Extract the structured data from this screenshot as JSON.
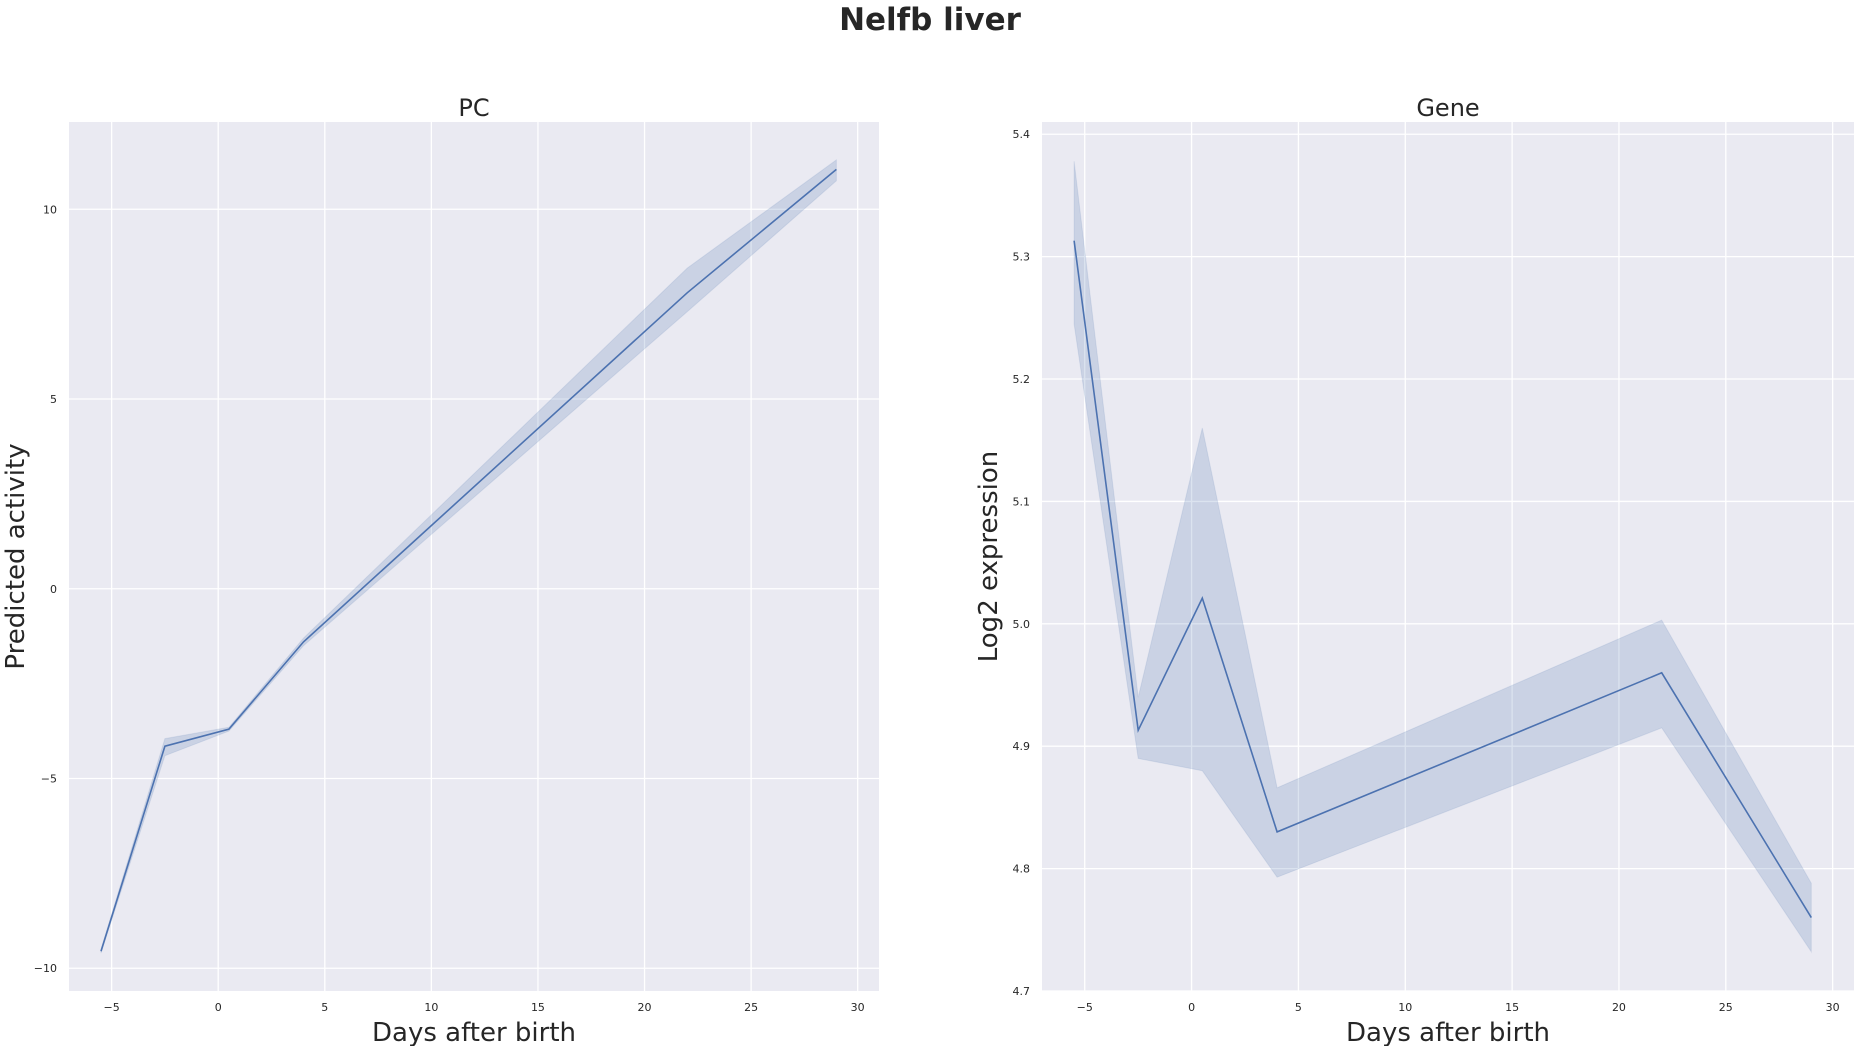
{
  "figure": {
    "title": "Nelfb liver"
  },
  "chart_data": [
    {
      "type": "line",
      "title": "PC",
      "xlabel": "Days after birth",
      "ylabel": "Predicted activity",
      "xlim": [
        -7,
        31
      ],
      "ylim": [
        -10.6,
        12.3
      ],
      "xticks": [
        -5,
        0,
        5,
        10,
        15,
        20,
        25,
        30
      ],
      "yticks": [
        -10,
        -5,
        0,
        5,
        10
      ],
      "grid": true,
      "series": [
        {
          "color": "#4c72b0",
          "x": [
            -5.5,
            -2.5,
            0.5,
            4,
            22,
            29
          ],
          "y": [
            -9.55,
            -4.15,
            -3.7,
            -1.4,
            7.8,
            11.05
          ],
          "ci_low": [
            -9.6,
            -4.4,
            -3.75,
            -1.5,
            7.3,
            10.75
          ],
          "ci_high": [
            -9.5,
            -3.95,
            -3.65,
            -1.3,
            8.45,
            11.3
          ]
        }
      ]
    },
    {
      "type": "line",
      "title": "Gene",
      "xlabel": "Days after birth",
      "ylabel": "Log2 expression",
      "xlim": [
        -7,
        31
      ],
      "ylim": [
        4.7,
        5.41
      ],
      "xticks": [
        -5,
        0,
        5,
        10,
        15,
        20,
        25,
        30
      ],
      "yticks": [
        4.7,
        4.8,
        4.9,
        5.0,
        5.1,
        5.2,
        5.3,
        5.4
      ],
      "grid": true,
      "series": [
        {
          "color": "#4c72b0",
          "x": [
            -5.5,
            -2.5,
            0.5,
            4,
            22,
            29
          ],
          "y": [
            5.313,
            4.913,
            5.021,
            4.83,
            4.96,
            4.76
          ],
          "ci_low": [
            5.245,
            4.89,
            4.88,
            4.793,
            4.915,
            4.732
          ],
          "ci_high": [
            5.378,
            4.94,
            5.16,
            4.866,
            5.003,
            4.788
          ]
        }
      ]
    }
  ]
}
